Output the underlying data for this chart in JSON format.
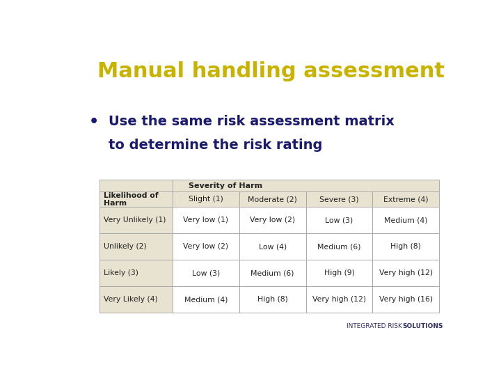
{
  "title": "Manual handling assessment",
  "title_color": "#C8B400",
  "bullet_text_line1": "Use the same risk assessment matrix",
  "bullet_text_line2": "to determine the risk rating",
  "bullet_color": "#1a1a6e",
  "bg_color": "#ffffff",
  "footer_normal": "INTEGRATED RISK ",
  "footer_bold": "SOLUTIONS",
  "footer_color": "#2e2e5e",
  "table": {
    "header_bg": "#e8e3d0",
    "cell_bg": "#ffffff",
    "border_color": "#aaaaaa",
    "col_header": "Severity of Harm",
    "row_header": "Likelihood of\nHarm",
    "col_labels": [
      "Slight (1)",
      "Moderate (2)",
      "Severe (3)",
      "Extreme (4)"
    ],
    "row_labels": [
      "Very Unlikely (1)",
      "Unlikely (2)",
      "Likely (3)",
      "Very Likely (4)"
    ],
    "cells": [
      [
        "Very low (1)",
        "Very low (2)",
        "Low (3)",
        "Medium (4)"
      ],
      [
        "Very low (2)",
        "Low (4)",
        "Medium (6)",
        "High (8)"
      ],
      [
        "Low (3)",
        "Medium (6)",
        "High (9)",
        "Very high (12)"
      ],
      [
        "Medium (4)",
        "High (8)",
        "Very high (12)",
        "Very high (16)"
      ]
    ],
    "text_color": "#222222"
  }
}
